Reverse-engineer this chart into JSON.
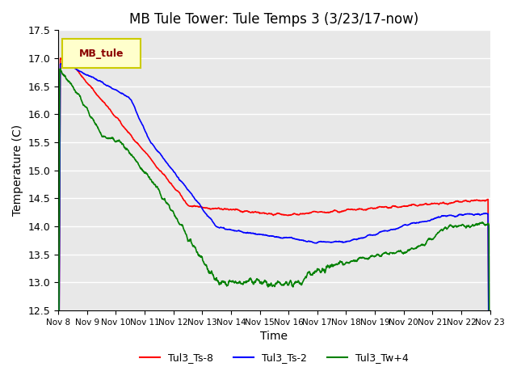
{
  "title": "MB Tule Tower: Tule Temps 3 (3/23/17-now)",
  "xlabel": "Time",
  "ylabel": "Temperature (C)",
  "ylim": [
    12.5,
    17.5
  ],
  "xlim": [
    0,
    15
  ],
  "x_tick_labels": [
    "Nov 8",
    "Nov 9",
    "Nov 10",
    "Nov 11",
    "Nov 12",
    "Nov 13",
    "Nov 14",
    "Nov 15",
    "Nov 16",
    "Nov 17",
    "Nov 18",
    "Nov 19",
    "Nov 20",
    "Nov 21",
    "Nov 22",
    "Nov 23"
  ],
  "legend_label": "MB_tule",
  "series_labels": [
    "Tul3_Ts-8",
    "Tul3_Ts-2",
    "Tul3_Tw+4"
  ],
  "colors": [
    "red",
    "blue",
    "green"
  ],
  "background_color": "#e8e8e8",
  "grid_color": "white",
  "title_fontsize": 12,
  "axis_fontsize": 10,
  "legend_box_color": "#ffffcc",
  "legend_box_edge": "#cccc00"
}
